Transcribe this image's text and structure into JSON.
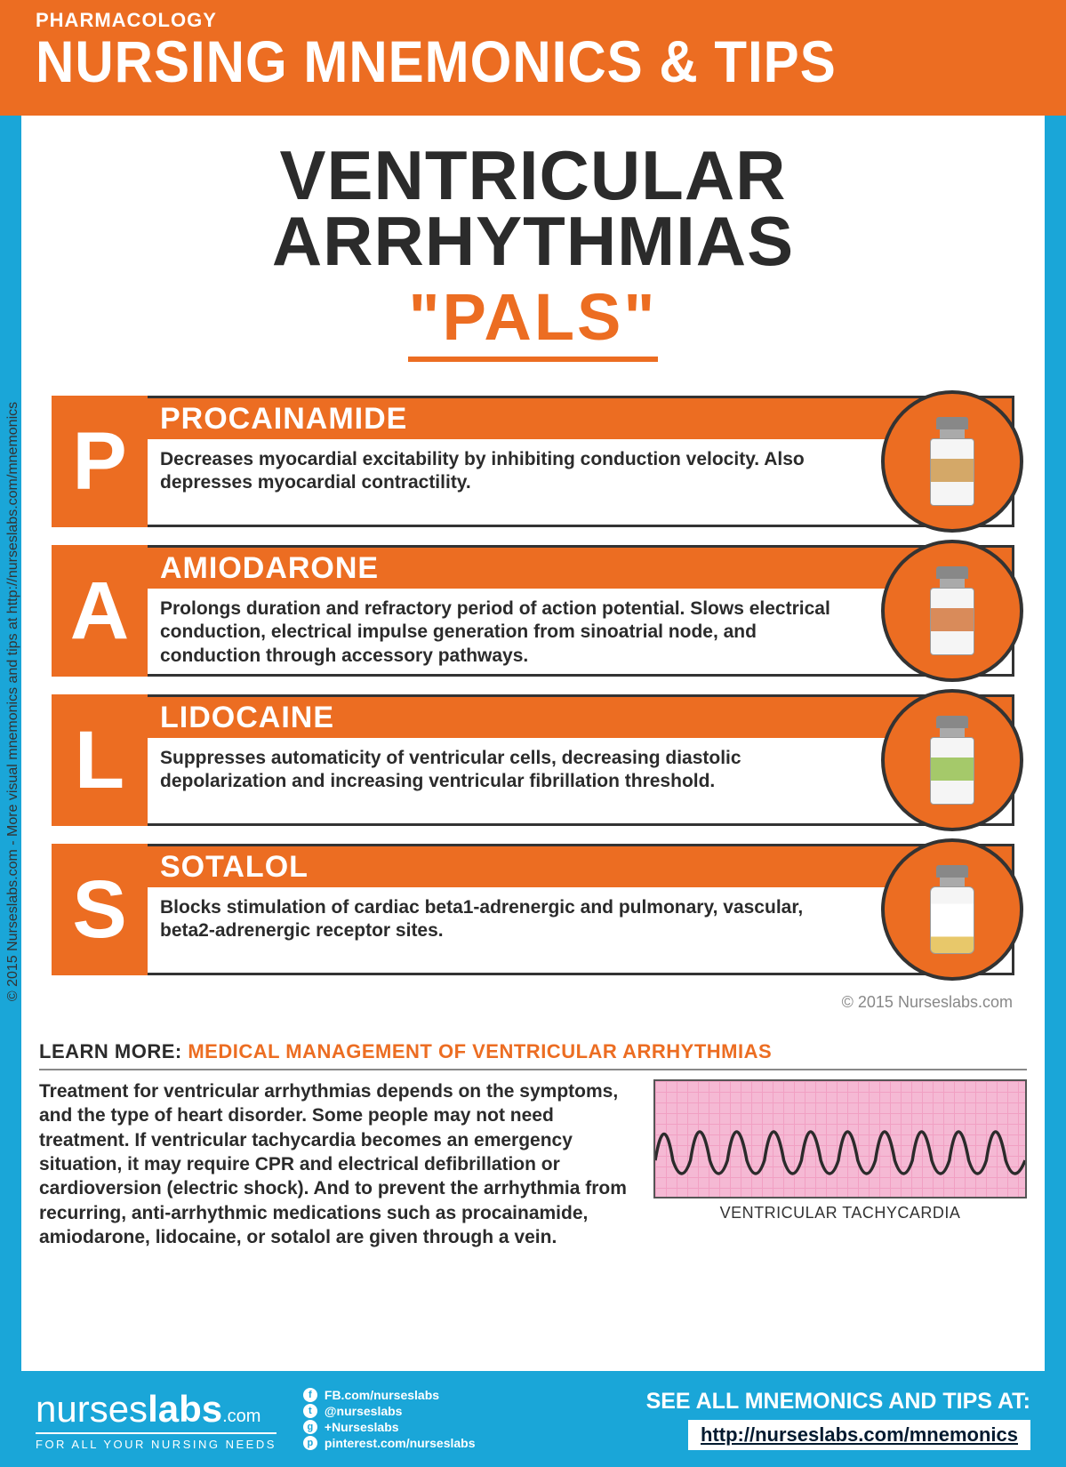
{
  "colors": {
    "orange": "#ec6d22",
    "blue": "#1aa6d8",
    "dark": "#2b2b2b",
    "border": "#333333",
    "ecg_bg": "#f5b9d4",
    "ecg_grid": "#f090b8",
    "ecg_line": "#2b2b2b",
    "white": "#ffffff"
  },
  "sidebar": {
    "text": "© 2015 Nurseslabs.com - More visual mnemonics and tips at http://nurseslabs.com/mnemonics"
  },
  "header": {
    "category": "PHARMACOLOGY",
    "title": "NURSING MNEMONICS & TIPS"
  },
  "main_title": {
    "line1": "VENTRICULAR",
    "line2": "ARRHYTHMIAS",
    "mnemonic": "\"PALS\""
  },
  "cards": [
    {
      "letter": "P",
      "name": "PROCAINAMIDE",
      "desc": "Decreases myocardial excitability by inhibiting conduction velocity. Also depresses myocardial contractility.",
      "vial_class": "label1"
    },
    {
      "letter": "A",
      "name": "AMIODARONE",
      "desc": "Prolongs duration and refractory period of action potential. Slows electrical conduction, electrical impulse generation from sinoatrial node, and conduction through accessory pathways.",
      "vial_class": "label2"
    },
    {
      "letter": "L",
      "name": "LIDOCAINE",
      "desc": "Suppresses automaticity of ventricular cells, decreasing diastolic depolarization and increasing ventricular fibrillation threshold.",
      "vial_class": "label3"
    },
    {
      "letter": "S",
      "name": "SOTALOL",
      "desc": "Blocks stimulation of cardiac beta1-adrenergic and pulmonary, vascular, beta2-adrenergic receptor sites.",
      "vial_class": "label4"
    }
  ],
  "inline_copyright": "© 2015 Nurseslabs.com",
  "learn_more": {
    "label": "LEARN MORE: ",
    "topic": "MEDICAL MANAGEMENT OF VENTRICULAR ARRHYTHMIAS",
    "text": "Treatment for ventricular arrhythmias depends on the symptoms, and the type of heart disorder. Some people may not need treatment. If ventricular tachycardia becomes an emergency situation, it may require CPR and electrical defibrillation or cardioversion (electric shock). And to prevent the arrhythmia from recurring, anti-arrhythmic medications such as procainamide, amiodarone, lidocaine, or sotalol are given through a vein.",
    "ecg_caption": "VENTRICULAR TACHYCARDIA"
  },
  "footer": {
    "logo_main_light": "nurses",
    "logo_main_bold": "labs",
    "logo_suffix": ".com",
    "logo_sub": "FOR ALL YOUR NURSING NEEDS",
    "socials": [
      {
        "icon": "f",
        "label": "FB.com/nurseslabs"
      },
      {
        "icon": "t",
        "label": "@nurseslabs"
      },
      {
        "icon": "g",
        "label": "+Nurseslabs"
      },
      {
        "icon": "p",
        "label": "pinterest.com/nurseslabs"
      }
    ],
    "see_all": "SEE ALL MNEMONICS AND TIPS AT:",
    "link": "http://nurseslabs.com/mnemonics"
  }
}
